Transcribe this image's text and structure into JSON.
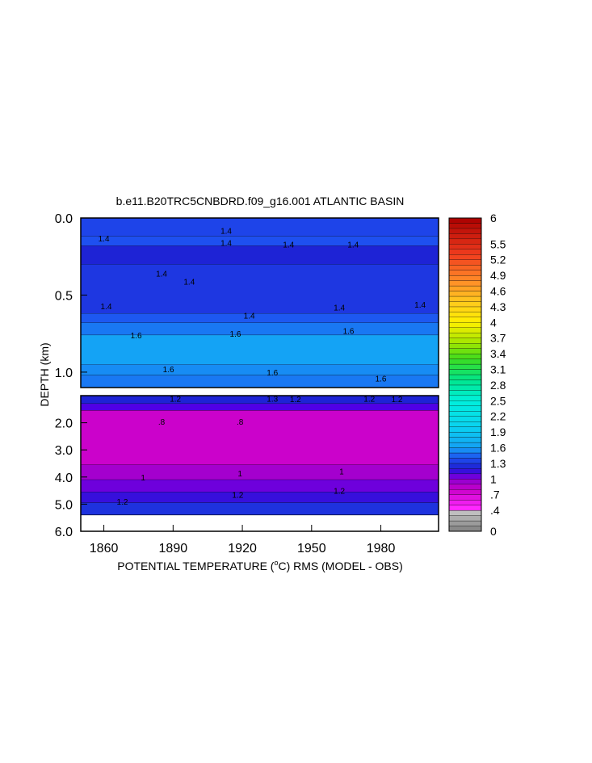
{
  "chart_data": {
    "type": "heatmap",
    "title": "b.e11.B20TRC5CNBDRD.f09_g16.001 ATLANTIC BASIN",
    "xlabel_pre": "POTENTIAL TEMPERATURE (",
    "xlabel_unit_sup": "o",
    "xlabel_post": "C) RMS (MODEL - OBS)",
    "ylabel": "DEPTH (km)",
    "xlim": [
      1850,
      2005
    ],
    "x_ticks": [
      1860,
      1890,
      1920,
      1950,
      1980
    ],
    "x_tick_labels": [
      "1860",
      "1890",
      "1920",
      "1950",
      "1980"
    ],
    "top_panel": {
      "ylim": [
        0.0,
        1.1
      ],
      "y_ticks": [
        0.0,
        0.5,
        1.0
      ],
      "y_tick_labels": [
        "0.0",
        "0.5",
        "1.0"
      ],
      "layers": [
        {
          "from": 0.0,
          "to": 0.12,
          "value": 1.35
        },
        {
          "from": 0.12,
          "to": 0.18,
          "value": 1.4
        },
        {
          "from": 0.18,
          "to": 0.3,
          "value": 1.22
        },
        {
          "from": 0.3,
          "to": 0.62,
          "value": 1.3
        },
        {
          "from": 0.62,
          "to": 0.68,
          "value": 1.42
        },
        {
          "from": 0.68,
          "to": 0.76,
          "value": 1.5
        },
        {
          "from": 0.76,
          "to": 0.95,
          "value": 1.62
        },
        {
          "from": 0.95,
          "to": 1.02,
          "value": 1.55
        },
        {
          "from": 1.02,
          "to": 1.1,
          "value": 1.5
        }
      ],
      "contour_labels": [
        {
          "x": 1860,
          "y": 0.13,
          "text": "1.4"
        },
        {
          "x": 1913,
          "y": 0.08,
          "text": "1.4"
        },
        {
          "x": 1913,
          "y": 0.16,
          "text": "1.4"
        },
        {
          "x": 1940,
          "y": 0.17,
          "text": "1.4"
        },
        {
          "x": 1968,
          "y": 0.17,
          "text": "1.4"
        },
        {
          "x": 1885,
          "y": 0.36,
          "text": "1.4"
        },
        {
          "x": 1897,
          "y": 0.41,
          "text": "1.4"
        },
        {
          "x": 1861,
          "y": 0.57,
          "text": "1.4"
        },
        {
          "x": 1923,
          "y": 0.63,
          "text": "1.4"
        },
        {
          "x": 1962,
          "y": 0.58,
          "text": "1.4"
        },
        {
          "x": 1997,
          "y": 0.56,
          "text": "1.4"
        },
        {
          "x": 1874,
          "y": 0.76,
          "text": "1.6"
        },
        {
          "x": 1917,
          "y": 0.75,
          "text": "1.6"
        },
        {
          "x": 1966,
          "y": 0.73,
          "text": "1.6"
        },
        {
          "x": 1888,
          "y": 0.98,
          "text": "1.6"
        },
        {
          "x": 1933,
          "y": 1.0,
          "text": "1.6"
        },
        {
          "x": 1980,
          "y": 1.04,
          "text": "1.6"
        }
      ]
    },
    "bottom_panel": {
      "ylim": [
        1.0,
        6.0
      ],
      "y_ticks": [
        2.0,
        3.0,
        4.0,
        5.0,
        6.0
      ],
      "y_tick_labels": [
        "2.0",
        "3.0",
        "4.0",
        "5.0",
        "6.0"
      ],
      "layers": [
        {
          "from": 1.0,
          "to": 1.3,
          "value": 1.22
        },
        {
          "from": 1.3,
          "to": 1.55,
          "value": 1.1
        },
        {
          "from": 1.55,
          "to": 3.55,
          "value": 0.78
        },
        {
          "from": 3.55,
          "to": 4.1,
          "value": 0.92
        },
        {
          "from": 4.1,
          "to": 4.55,
          "value": 1.05
        },
        {
          "from": 4.55,
          "to": 4.95,
          "value": 1.15
        },
        {
          "from": 4.95,
          "to": 5.4,
          "value": 1.28
        }
      ],
      "contour_labels": [
        {
          "x": 1891,
          "y": 1.1,
          "text": "1.2"
        },
        {
          "x": 1933,
          "y": 1.1,
          "text": "1.3"
        },
        {
          "x": 1943,
          "y": 1.12,
          "text": "1.2"
        },
        {
          "x": 1975,
          "y": 1.1,
          "text": "1.2"
        },
        {
          "x": 1987,
          "y": 1.12,
          "text": "1.2"
        },
        {
          "x": 1885,
          "y": 1.95,
          "text": ".8"
        },
        {
          "x": 1919,
          "y": 1.95,
          "text": ".8"
        },
        {
          "x": 1877,
          "y": 4.0,
          "text": "1"
        },
        {
          "x": 1919,
          "y": 3.85,
          "text": "1"
        },
        {
          "x": 1963,
          "y": 3.78,
          "text": "1"
        },
        {
          "x": 1918,
          "y": 4.65,
          "text": "1.2"
        },
        {
          "x": 1962,
          "y": 4.5,
          "text": "1.2"
        },
        {
          "x": 1868,
          "y": 4.9,
          "text": "1.2"
        }
      ]
    },
    "colorbar": {
      "levels": [
        0,
        0.1,
        0.2,
        0.3,
        0.4,
        0.5,
        0.6,
        0.7,
        0.8,
        0.9,
        1.0,
        1.1,
        1.2,
        1.3,
        1.4,
        1.5,
        1.6,
        1.7,
        1.8,
        1.9,
        2.0,
        2.1,
        2.2,
        2.3,
        2.4,
        2.5,
        2.6,
        2.7,
        2.8,
        2.9,
        3.0,
        3.1,
        3.2,
        3.3,
        3.4,
        3.5,
        3.6,
        3.7,
        3.8,
        3.9,
        4.0,
        4.1,
        4.2,
        4.3,
        4.4,
        4.5,
        4.6,
        4.7,
        4.8,
        4.9,
        5.0,
        5.1,
        5.2,
        5.3,
        5.4,
        5.5,
        5.6,
        5.7,
        5.8,
        5.9,
        6.0
      ],
      "tick_values": [
        0,
        0.4,
        0.7,
        1.0,
        1.3,
        1.6,
        1.9,
        2.2,
        2.5,
        2.8,
        3.1,
        3.4,
        3.7,
        4.0,
        4.3,
        4.6,
        4.9,
        5.2,
        5.5,
        6.0
      ],
      "tick_labels": [
        "0",
        ".4",
        ".7",
        "1",
        "1.3",
        "1.6",
        "1.9",
        "2.2",
        "2.5",
        "2.8",
        "3.1",
        "3.4",
        "3.7",
        "4",
        "4.3",
        "4.6",
        "4.9",
        "5.2",
        "5.5",
        "6"
      ],
      "color_stops": [
        {
          "v": 0.0,
          "c": "#808080"
        },
        {
          "v": 0.4,
          "c": "#c8c8c8"
        },
        {
          "v": 0.45,
          "c": "#ff28ff"
        },
        {
          "v": 0.8,
          "c": "#c800c8"
        },
        {
          "v": 1.0,
          "c": "#8c00d2"
        },
        {
          "v": 1.1,
          "c": "#5000e6"
        },
        {
          "v": 1.2,
          "c": "#1e1ed2"
        },
        {
          "v": 1.4,
          "c": "#1e50f0"
        },
        {
          "v": 1.6,
          "c": "#14a0f5"
        },
        {
          "v": 2.0,
          "c": "#0ad2f0"
        },
        {
          "v": 2.5,
          "c": "#00f0dc"
        },
        {
          "v": 2.9,
          "c": "#00e68c"
        },
        {
          "v": 3.3,
          "c": "#3cdc1e"
        },
        {
          "v": 3.6,
          "c": "#a0e600"
        },
        {
          "v": 4.0,
          "c": "#fff000"
        },
        {
          "v": 4.4,
          "c": "#ffc81e"
        },
        {
          "v": 4.8,
          "c": "#ff8c28"
        },
        {
          "v": 5.3,
          "c": "#f03c1e"
        },
        {
          "v": 6.0,
          "c": "#aa0000"
        }
      ]
    }
  }
}
